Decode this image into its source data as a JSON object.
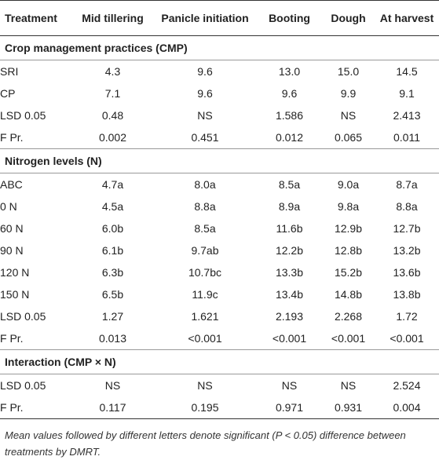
{
  "headers": [
    "Treatment",
    "Mid tillering",
    "Panicle initiation",
    "Booting",
    "Dough",
    "At harvest"
  ],
  "sections": [
    {
      "title": "Crop management practices (CMP)",
      "rows": [
        [
          "SRI",
          "4.3",
          "9.6",
          "13.0",
          "15.0",
          "14.5"
        ],
        [
          "CP",
          "7.1",
          "9.6",
          "9.6",
          "9.9",
          "9.1"
        ],
        [
          "LSD 0.05",
          "0.48",
          "NS",
          "1.586",
          "NS",
          "2.413"
        ],
        [
          "F Pr.",
          "0.002",
          "0.451",
          "0.012",
          "0.065",
          "0.011"
        ]
      ]
    },
    {
      "title": "Nitrogen levels (N)",
      "rows": [
        [
          "ABC",
          "4.7a",
          "8.0a",
          "8.5a",
          "9.0a",
          "8.7a"
        ],
        [
          "0 N",
          "4.5a",
          "8.8a",
          "8.9a",
          "9.8a",
          "8.8a"
        ],
        [
          "60 N",
          "6.0b",
          "8.5a",
          "11.6b",
          "12.9b",
          "12.7b"
        ],
        [
          "90 N",
          "6.1b",
          "9.7ab",
          "12.2b",
          "12.8b",
          "13.2b"
        ],
        [
          "120 N",
          "6.3b",
          "10.7bc",
          "13.3b",
          "15.2b",
          "13.6b"
        ],
        [
          "150 N",
          "6.5b",
          "11.9c",
          "13.4b",
          "14.8b",
          "13.8b"
        ],
        [
          "LSD 0.05",
          "1.27",
          "1.621",
          "2.193",
          "2.268",
          "1.72"
        ],
        [
          "F Pr.",
          "0.013",
          "<0.001",
          "<0.001",
          "<0.001",
          "<0.001"
        ]
      ]
    },
    {
      "title": "Interaction (CMP × N)",
      "rows": [
        [
          "LSD 0.05",
          "NS",
          "NS",
          "NS",
          "NS",
          "2.524"
        ],
        [
          "F Pr.",
          "0.117",
          "0.195",
          "0.971",
          "0.931",
          "0.004"
        ]
      ]
    }
  ],
  "footnote": "Mean values followed by different letters denote significant (P < 0.05) difference between treatments by DMRT."
}
